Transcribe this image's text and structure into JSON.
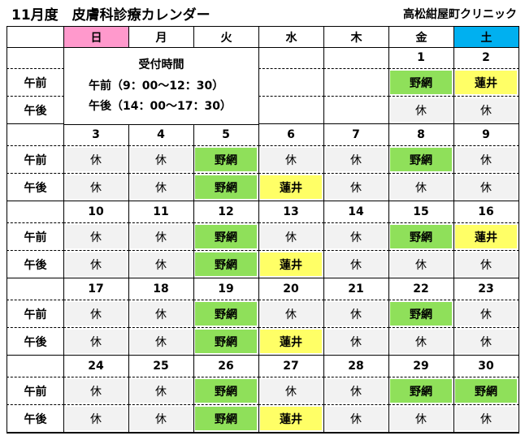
{
  "header": {
    "title": "11月度　皮膚科診療カレンダー",
    "clinic": "高松紺屋町クリニック"
  },
  "days": [
    "日",
    "月",
    "火",
    "水",
    "木",
    "金",
    "土"
  ],
  "row_labels": {
    "am": "午前",
    "pm": "午後"
  },
  "reception": {
    "title": "受付時間",
    "am": "午前（9：00～12：30）",
    "pm": "午後（14：00～17：30）"
  },
  "cell_colors": {
    "野網": "#8fe05a",
    "蓮井": "#ffff66",
    "休": "#f2f2f2"
  },
  "weeks": [
    {
      "dates": [
        null,
        null,
        null,
        null,
        null,
        1,
        2
      ],
      "am": [
        null,
        null,
        null,
        null,
        null,
        "野網",
        "蓮井"
      ],
      "pm": [
        null,
        null,
        null,
        null,
        null,
        "休",
        "休"
      ]
    },
    {
      "dates": [
        3,
        4,
        5,
        6,
        7,
        8,
        9
      ],
      "am": [
        "休",
        "休",
        "野網",
        "休",
        "休",
        "野網",
        "休"
      ],
      "pm": [
        "休",
        "休",
        "野網",
        "蓮井",
        "休",
        "休",
        "休"
      ]
    },
    {
      "dates": [
        10,
        11,
        12,
        13,
        14,
        15,
        16
      ],
      "am": [
        "休",
        "休",
        "野網",
        "休",
        "休",
        "野網",
        "蓮井"
      ],
      "pm": [
        "休",
        "休",
        "野網",
        "蓮井",
        "休",
        "休",
        "休"
      ]
    },
    {
      "dates": [
        17,
        18,
        19,
        20,
        21,
        22,
        23
      ],
      "am": [
        "休",
        "休",
        "野網",
        "休",
        "休",
        "野網",
        "休"
      ],
      "pm": [
        "休",
        "休",
        "野網",
        "蓮井",
        "休",
        "休",
        "休"
      ]
    },
    {
      "dates": [
        24,
        25,
        26,
        27,
        28,
        29,
        30
      ],
      "am": [
        "休",
        "休",
        "野網",
        "休",
        "休",
        "野網",
        "野網"
      ],
      "pm": [
        "休",
        "休",
        "野網",
        "蓮井",
        "休",
        "休",
        "休"
      ]
    }
  ]
}
